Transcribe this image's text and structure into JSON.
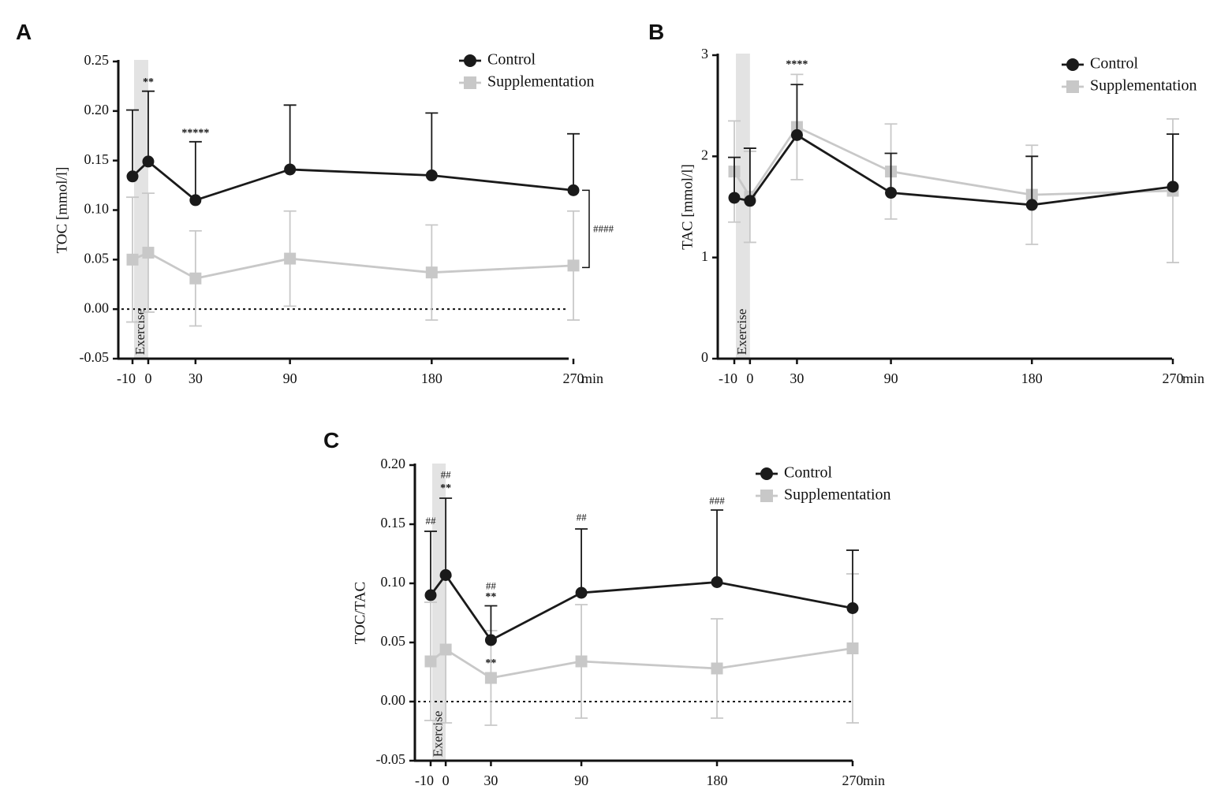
{
  "figure": {
    "background": "#ffffff",
    "colors": {
      "control": "#1a1a1a",
      "supplementation": "#c8c8c8",
      "exercise_band": "#e3e3e3"
    }
  },
  "chart_data": [
    {
      "panel": "A",
      "type": "line",
      "ylabel": "TOC [mmol/l]",
      "xlabel": "min",
      "ylim": [
        -0.05,
        0.25
      ],
      "yticks": [
        "-0.05",
        "0.00",
        "0.05",
        "0.10",
        "0.15",
        "0.20",
        "0.25"
      ],
      "ytick_values": [
        -0.05,
        0,
        0.05,
        0.1,
        0.15,
        0.2,
        0.25
      ],
      "x": [
        -10,
        0,
        30,
        90,
        180,
        270
      ],
      "xticks": [
        "-10",
        "0",
        "30",
        "90",
        "180",
        "270"
      ],
      "zero_line": true,
      "exercise_band": {
        "from": -10,
        "to": 0,
        "label": "Exercise"
      },
      "legend": {
        "position": "top-right"
      },
      "series": [
        {
          "name": "Control",
          "marker": "circle",
          "values": [
            0.134,
            0.149,
            0.11,
            0.141,
            0.135,
            0.12
          ],
          "errors": [
            0.067,
            0.071,
            0.059,
            0.065,
            0.063,
            0.057
          ]
        },
        {
          "name": "Supplementation",
          "marker": "square",
          "values": [
            0.05,
            0.057,
            0.031,
            0.051,
            0.037,
            0.044
          ],
          "errors": [
            0.063,
            0.06,
            0.048,
            0.048,
            0.048,
            0.055
          ]
        }
      ],
      "annotations": [
        {
          "text": "**",
          "x": 0,
          "y": 0.226,
          "style": "bold"
        },
        {
          "text": "*****",
          "x": 30,
          "y": 0.175,
          "style": "bold"
        }
      ],
      "bracket": {
        "text": "####",
        "from": 0.12,
        "to": 0.042,
        "x": 270
      }
    },
    {
      "panel": "B",
      "type": "line",
      "ylabel": "TAC [mmol/l]",
      "xlabel": "min",
      "ylim": [
        0,
        3
      ],
      "yticks": [
        "0",
        "1",
        "2",
        "3"
      ],
      "ytick_values": [
        0,
        1,
        2,
        3
      ],
      "x": [
        -10,
        0,
        30,
        90,
        180,
        270
      ],
      "xticks": [
        "-10",
        "0",
        "30",
        "90",
        "180",
        "270"
      ],
      "zero_line": false,
      "exercise_band": {
        "from": -10,
        "to": 0,
        "label": "Exercise"
      },
      "legend": {
        "position": "top-right"
      },
      "series": [
        {
          "name": "Control",
          "marker": "circle",
          "values": [
            1.59,
            1.56,
            2.21,
            1.64,
            1.52,
            1.7
          ],
          "errors": [
            0.4,
            0.52,
            0.5,
            0.39,
            0.48,
            0.52
          ]
        },
        {
          "name": "Supplementation",
          "marker": "square",
          "values": [
            1.85,
            1.6,
            2.29,
            1.85,
            1.62,
            1.66
          ],
          "errors": [
            0.5,
            0.45,
            0.52,
            0.47,
            0.49,
            0.71
          ]
        }
      ],
      "annotations": [
        {
          "text": "****",
          "x": 30,
          "y": 2.88,
          "style": "bold"
        }
      ]
    },
    {
      "panel": "C",
      "type": "line",
      "ylabel": "TOC/TAC",
      "xlabel": "min",
      "ylim": [
        -0.05,
        0.2
      ],
      "yticks": [
        "-0.05",
        "0.00",
        "0.05",
        "0.10",
        "0.15",
        "0.20"
      ],
      "ytick_values": [
        -0.05,
        0,
        0.05,
        0.1,
        0.15,
        0.2
      ],
      "x": [
        -10,
        0,
        30,
        90,
        180,
        270
      ],
      "xticks": [
        "-10",
        "0",
        "30",
        "90",
        "180",
        "270"
      ],
      "zero_line": true,
      "exercise_band": {
        "from": -10,
        "to": 0,
        "label": "Exercise"
      },
      "legend": {
        "position": "top-right"
      },
      "series": [
        {
          "name": "Control",
          "marker": "circle",
          "values": [
            0.09,
            0.107,
            0.052,
            0.092,
            0.101,
            0.079
          ],
          "errors": [
            0.054,
            0.065,
            0.029,
            0.054,
            0.061,
            0.049
          ]
        },
        {
          "name": "Supplementation",
          "marker": "square",
          "values": [
            0.034,
            0.044,
            0.02,
            0.034,
            0.028,
            0.045
          ],
          "errors": [
            0.05,
            0.062,
            0.04,
            0.048,
            0.042,
            0.063
          ]
        }
      ],
      "annotations": [
        {
          "text": "##",
          "x": -10,
          "y": 0.15,
          "style": "hash"
        },
        {
          "text": "##",
          "x": 0,
          "y": 0.189,
          "style": "hash"
        },
        {
          "text": "**",
          "x": 0,
          "y": 0.178,
          "style": "bold"
        },
        {
          "text": "##",
          "x": 30,
          "y": 0.095,
          "style": "hash"
        },
        {
          "text": "**",
          "x": 30,
          "y": 0.086,
          "style": "bold"
        },
        {
          "text": "**",
          "x": 30,
          "y": 0.03,
          "style": "bold"
        },
        {
          "text": "##",
          "x": 90,
          "y": 0.153,
          "style": "hash"
        },
        {
          "text": "###",
          "x": 180,
          "y": 0.167,
          "style": "hash"
        }
      ]
    }
  ]
}
